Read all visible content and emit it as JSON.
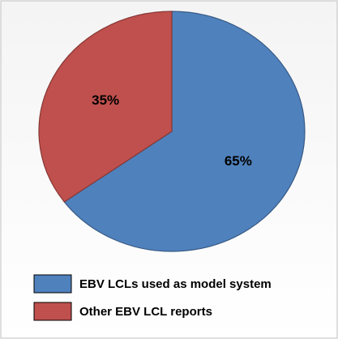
{
  "chart_data": {
    "type": "pie",
    "categories": [
      "EBV LCLs used as model system",
      "Other EBV LCL reports"
    ],
    "values": [
      65,
      35
    ],
    "value_labels": [
      "65%",
      "35%"
    ],
    "colors": [
      "#4f81bd",
      "#c0504d"
    ],
    "legend": "bottom"
  }
}
